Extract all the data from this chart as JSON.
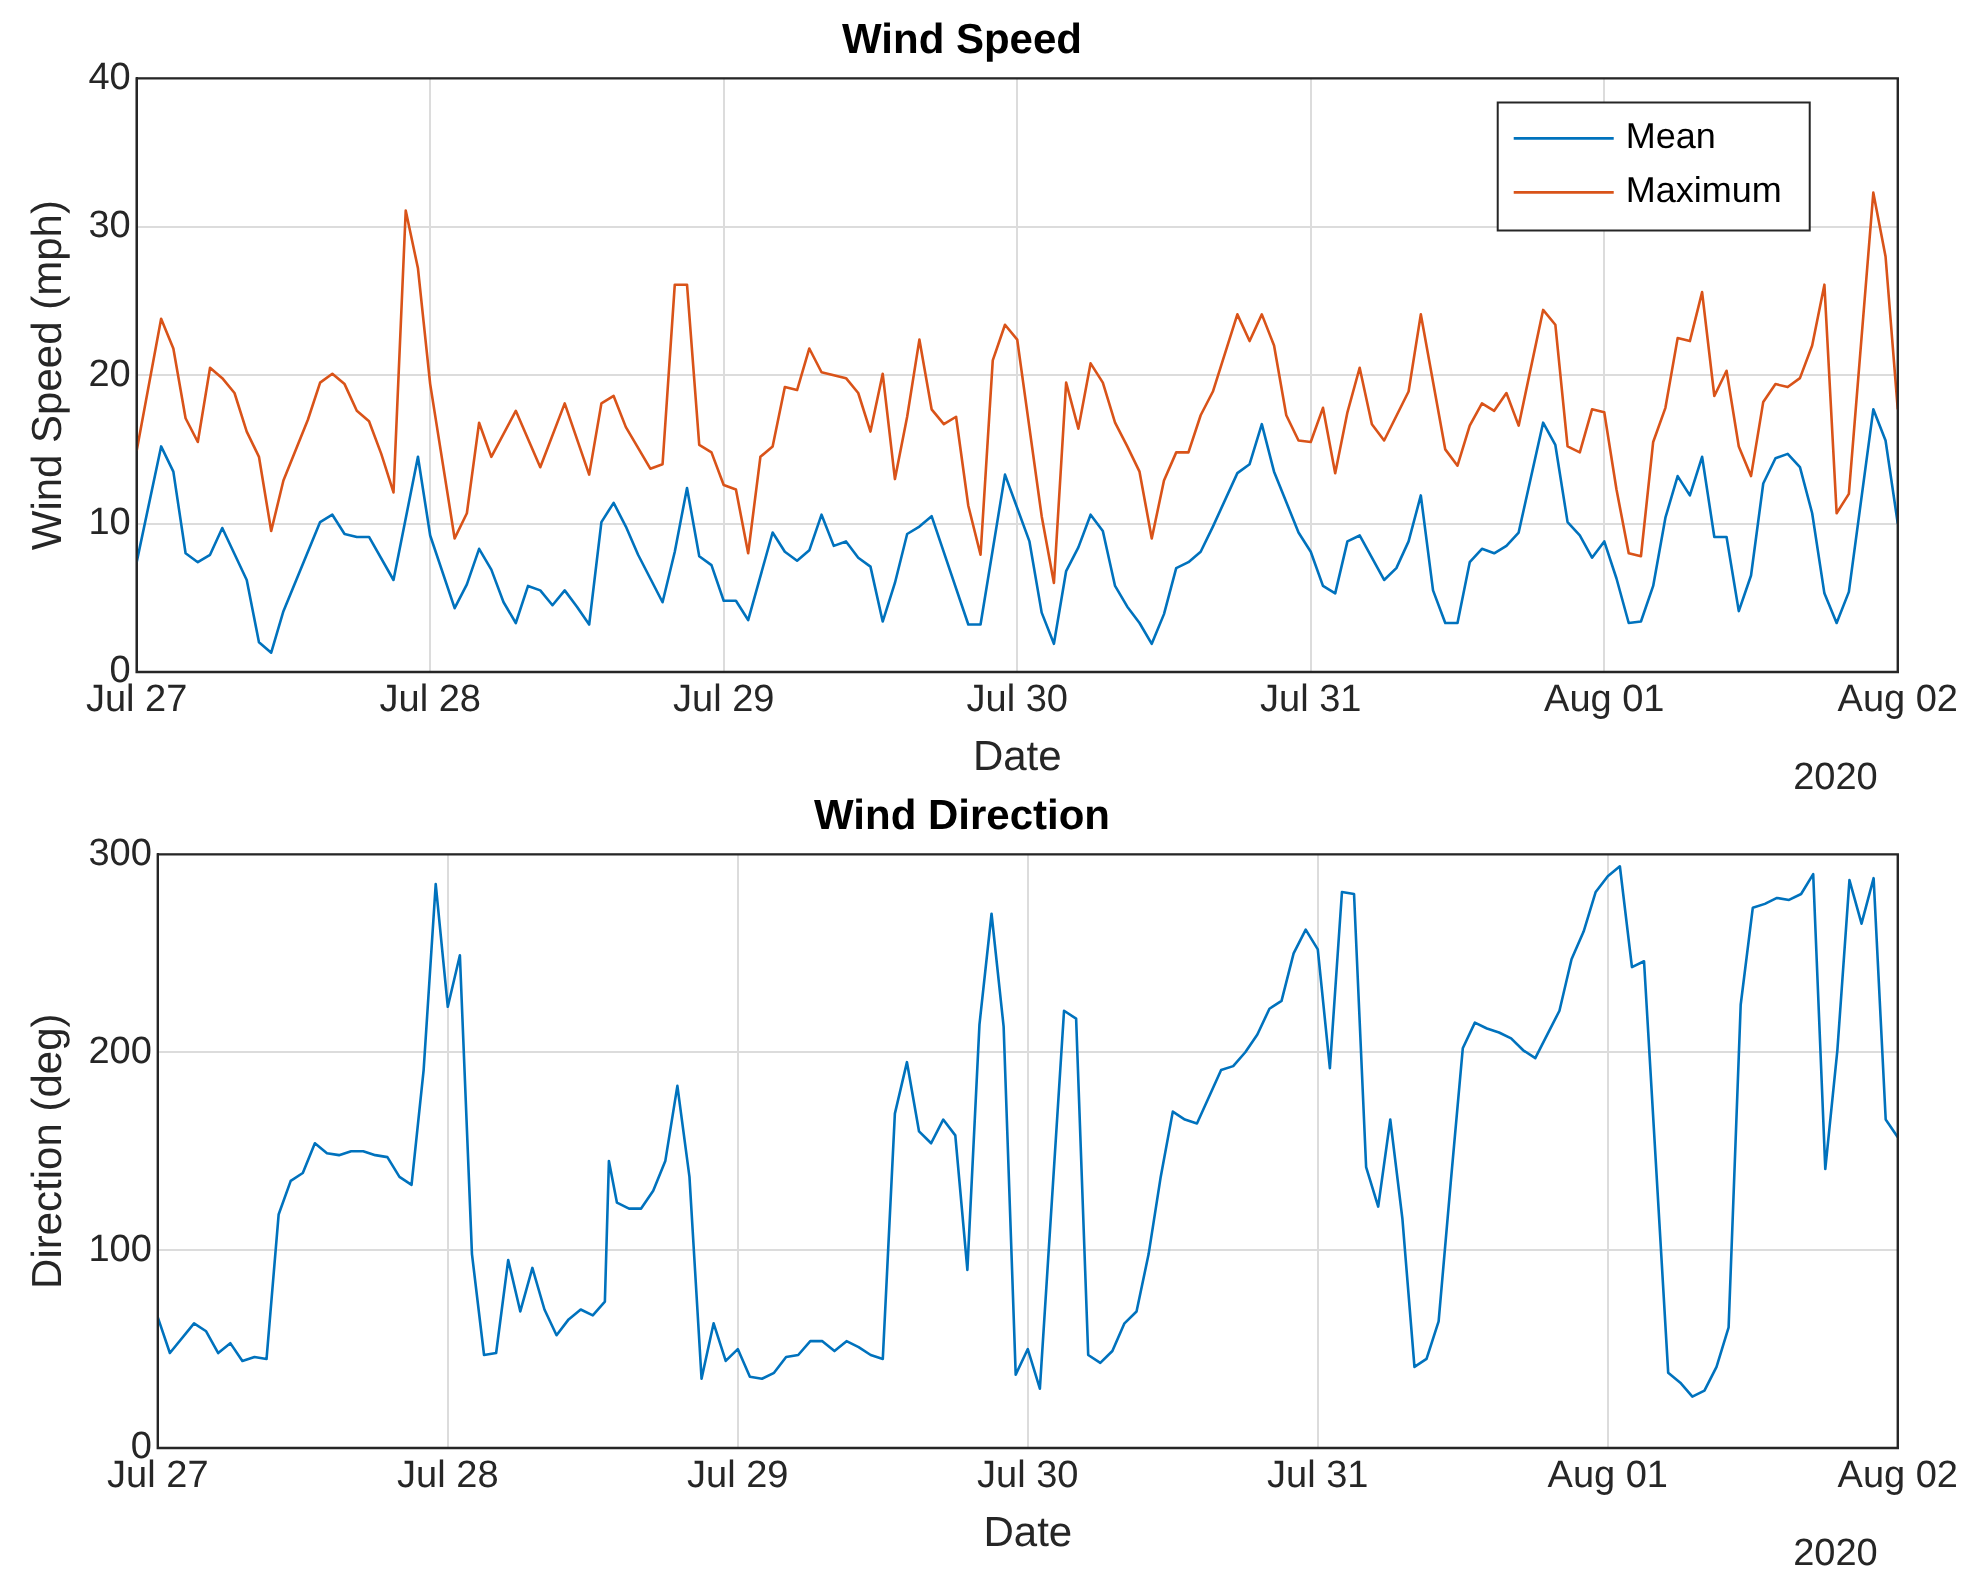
{
  "chart_data": [
    {
      "type": "line",
      "title": "Wind Speed",
      "xlabel": "Date",
      "ylabel": "Wind Speed (mph)",
      "annotations": [
        "2020"
      ],
      "xlim": [
        "2020-07-27",
        "2020-08-02"
      ],
      "xticks": [
        {
          "value": "2020-07-27",
          "label": "Jul 27"
        },
        {
          "value": "2020-07-28",
          "label": "Jul 28"
        },
        {
          "value": "2020-07-29",
          "label": "Jul 29"
        },
        {
          "value": "2020-07-30",
          "label": "Jul 30"
        },
        {
          "value": "2020-07-31",
          "label": "Jul 31"
        },
        {
          "value": "2020-08-01",
          "label": "Aug 01"
        },
        {
          "value": "2020-08-02",
          "label": "Aug 02"
        }
      ],
      "ylim": [
        0,
        40
      ],
      "yticks": [
        0,
        10,
        20,
        30,
        40
      ],
      "grid": true,
      "legend": "top right",
      "series": [
        {
          "name": "Mean",
          "color": "#0072bd",
          "x": [
            "2020-07-27T00:00",
            "2020-07-27T02:00",
            "2020-07-27T03:00",
            "2020-07-27T04:00",
            "2020-07-27T05:00",
            "2020-07-27T06:00",
            "2020-07-27T07:00",
            "2020-07-27T09:00",
            "2020-07-27T10:00",
            "2020-07-27T11:00",
            "2020-07-27T12:00",
            "2020-07-27T15:00",
            "2020-07-27T16:00",
            "2020-07-27T17:00",
            "2020-07-27T18:00",
            "2020-07-27T19:00",
            "2020-07-27T21:00",
            "2020-07-27T23:00",
            "2020-07-28T00:00",
            "2020-07-28T02:00",
            "2020-07-28T03:00",
            "2020-07-28T04:00",
            "2020-07-28T05:00",
            "2020-07-28T06:00",
            "2020-07-28T07:00",
            "2020-07-28T08:00",
            "2020-07-28T09:00",
            "2020-07-28T10:00",
            "2020-07-28T11:00",
            "2020-07-28T12:00",
            "2020-07-28T13:00",
            "2020-07-28T14:00",
            "2020-07-28T15:00",
            "2020-07-28T16:00",
            "2020-07-28T17:00",
            "2020-07-28T18:00",
            "2020-07-28T19:00",
            "2020-07-28T20:00",
            "2020-07-28T21:00",
            "2020-07-28T22:00",
            "2020-07-28T23:00",
            "2020-07-29T00:00",
            "2020-07-29T01:00",
            "2020-07-29T02:00",
            "2020-07-29T04:00",
            "2020-07-29T05:00",
            "2020-07-29T06:00",
            "2020-07-29T07:00",
            "2020-07-29T08:00",
            "2020-07-29T09:00",
            "2020-07-29T10:00",
            "2020-07-29T11:00",
            "2020-07-29T12:00",
            "2020-07-29T13:00",
            "2020-07-29T14:00",
            "2020-07-29T15:00",
            "2020-07-29T16:00",
            "2020-07-29T17:00",
            "2020-07-29T20:00",
            "2020-07-29T21:00",
            "2020-07-29T23:00",
            "2020-07-30T01:00",
            "2020-07-30T02:00",
            "2020-07-30T03:00",
            "2020-07-30T04:00",
            "2020-07-30T05:00",
            "2020-07-30T06:00",
            "2020-07-30T07:00",
            "2020-07-30T08:00",
            "2020-07-30T09:00",
            "2020-07-30T10:00",
            "2020-07-30T11:00",
            "2020-07-30T12:00",
            "2020-07-30T13:00",
            "2020-07-30T14:00",
            "2020-07-30T15:00",
            "2020-07-30T16:00",
            "2020-07-30T18:00",
            "2020-07-30T19:00",
            "2020-07-30T20:00",
            "2020-07-30T21:00",
            "2020-07-30T23:00",
            "2020-07-31T00:00",
            "2020-07-31T01:00",
            "2020-07-31T02:00",
            "2020-07-31T03:00",
            "2020-07-31T04:00",
            "2020-07-31T06:00",
            "2020-07-31T07:00",
            "2020-07-31T08:00",
            "2020-07-31T09:00",
            "2020-07-31T10:00",
            "2020-07-31T11:00",
            "2020-07-31T12:00",
            "2020-07-31T13:00",
            "2020-07-31T14:00",
            "2020-07-31T15:00",
            "2020-07-31T16:00",
            "2020-07-31T17:00",
            "2020-07-31T19:00",
            "2020-07-31T20:00",
            "2020-07-31T21:00",
            "2020-07-31T22:00",
            "2020-07-31T23:00",
            "2020-08-01T00:00",
            "2020-08-01T01:00",
            "2020-08-01T02:00",
            "2020-08-01T03:00",
            "2020-08-01T04:00",
            "2020-08-01T05:00",
            "2020-08-01T06:00",
            "2020-08-01T07:00",
            "2020-08-01T08:00",
            "2020-08-01T09:00",
            "2020-08-01T10:00",
            "2020-08-01T11:00",
            "2020-08-01T12:00",
            "2020-08-01T13:00",
            "2020-08-01T14:00",
            "2020-08-01T15:00",
            "2020-08-01T16:00",
            "2020-08-01T17:00",
            "2020-08-01T18:00",
            "2020-08-01T19:00",
            "2020-08-01T20:00",
            "2020-08-01T22:00",
            "2020-08-01T23:00",
            "2020-08-02T00:00"
          ],
          "values": [
            7.4,
            15.2,
            13.5,
            8.0,
            7.4,
            7.9,
            9.7,
            6.2,
            2.0,
            1.3,
            4.1,
            10.1,
            10.6,
            9.3,
            9.1,
            9.1,
            6.2,
            14.5,
            9.2,
            4.3,
            5.9,
            8.3,
            6.9,
            4.7,
            3.3,
            5.8,
            5.5,
            4.5,
            5.5,
            4.4,
            3.2,
            10.1,
            11.4,
            9.8,
            7.9,
            6.3,
            4.7,
            8.1,
            12.4,
            7.8,
            7.2,
            4.8,
            4.8,
            3.5,
            9.4,
            8.1,
            7.5,
            8.2,
            10.6,
            8.5,
            8.8,
            7.7,
            7.1,
            3.4,
            6.0,
            9.3,
            9.8,
            10.5,
            3.2,
            3.2,
            13.3,
            8.8,
            4.0,
            1.9,
            6.8,
            8.4,
            10.6,
            9.5,
            5.8,
            4.4,
            3.3,
            1.9,
            3.9,
            7.0,
            7.4,
            8.1,
            9.8,
            13.4,
            14.0,
            16.7,
            13.5,
            9.4,
            8.1,
            5.8,
            5.3,
            8.8,
            9.2,
            6.2,
            7.0,
            8.8,
            11.9,
            5.5,
            3.3,
            3.3,
            7.4,
            8.3,
            8.0,
            8.5,
            9.4,
            16.8,
            15.3,
            10.1,
            9.2,
            7.7,
            8.8,
            6.3,
            3.3,
            3.4,
            5.8,
            10.4,
            13.2,
            11.9,
            14.5,
            9.1,
            9.1,
            4.1,
            6.5,
            12.7,
            14.4,
            14.7,
            13.8,
            10.7,
            5.3,
            3.3,
            5.4,
            17.7,
            15.6,
            10.0
          ]
        },
        {
          "name": "Maximum",
          "color": "#d95319",
          "x": [
            "2020-07-27T00:00",
            "2020-07-27T02:00",
            "2020-07-27T03:00",
            "2020-07-27T04:00",
            "2020-07-27T05:00",
            "2020-07-27T06:00",
            "2020-07-27T07:00",
            "2020-07-27T08:00",
            "2020-07-27T09:00",
            "2020-07-27T10:00",
            "2020-07-27T11:00",
            "2020-07-27T12:00",
            "2020-07-27T14:00",
            "2020-07-27T15:00",
            "2020-07-27T16:00",
            "2020-07-27T17:00",
            "2020-07-27T18:00",
            "2020-07-27T19:00",
            "2020-07-27T20:00",
            "2020-07-27T21:00",
            "2020-07-27T22:00",
            "2020-07-27T23:00",
            "2020-07-28T00:00",
            "2020-07-28T02:00",
            "2020-07-28T03:00",
            "2020-07-28T04:00",
            "2020-07-28T05:00",
            "2020-07-28T07:00",
            "2020-07-28T09:00",
            "2020-07-28T11:00",
            "2020-07-28T13:00",
            "2020-07-28T14:00",
            "2020-07-28T15:00",
            "2020-07-28T16:00",
            "2020-07-28T18:00",
            "2020-07-28T19:00",
            "2020-07-28T20:00",
            "2020-07-28T21:00",
            "2020-07-28T22:00",
            "2020-07-28T23:00",
            "2020-07-29T00:00",
            "2020-07-29T01:00",
            "2020-07-29T02:00",
            "2020-07-29T03:00",
            "2020-07-29T04:00",
            "2020-07-29T05:00",
            "2020-07-29T06:00",
            "2020-07-29T07:00",
            "2020-07-29T08:00",
            "2020-07-29T09:00",
            "2020-07-29T10:00",
            "2020-07-29T11:00",
            "2020-07-29T12:00",
            "2020-07-29T13:00",
            "2020-07-29T14:00",
            "2020-07-29T15:00",
            "2020-07-29T16:00",
            "2020-07-29T17:00",
            "2020-07-29T18:00",
            "2020-07-29T19:00",
            "2020-07-29T20:00",
            "2020-07-29T21:00",
            "2020-07-29T22:00",
            "2020-07-29T23:00",
            "2020-07-30T00:00",
            "2020-07-30T02:00",
            "2020-07-30T03:00",
            "2020-07-30T04:00",
            "2020-07-30T05:00",
            "2020-07-30T06:00",
            "2020-07-30T07:00",
            "2020-07-30T08:00",
            "2020-07-30T09:00",
            "2020-07-30T10:00",
            "2020-07-30T11:00",
            "2020-07-30T12:00",
            "2020-07-30T13:00",
            "2020-07-30T14:00",
            "2020-07-30T15:00",
            "2020-07-30T16:00",
            "2020-07-30T18:00",
            "2020-07-30T19:00",
            "2020-07-30T20:00",
            "2020-07-30T21:00",
            "2020-07-30T22:00",
            "2020-07-30T23:00",
            "2020-07-31T00:00",
            "2020-07-31T01:00",
            "2020-07-31T02:00",
            "2020-07-31T03:00",
            "2020-07-31T04:00",
            "2020-07-31T05:00",
            "2020-07-31T06:00",
            "2020-07-31T08:00",
            "2020-07-31T09:00",
            "2020-07-31T11:00",
            "2020-07-31T12:00",
            "2020-07-31T13:00",
            "2020-07-31T14:00",
            "2020-07-31T15:00",
            "2020-07-31T16:00",
            "2020-07-31T17:00",
            "2020-07-31T19:00",
            "2020-07-31T20:00",
            "2020-07-31T21:00",
            "2020-07-31T22:00",
            "2020-07-31T23:00",
            "2020-08-01T00:00",
            "2020-08-01T01:00",
            "2020-08-01T02:00",
            "2020-08-01T03:00",
            "2020-08-01T04:00",
            "2020-08-01T05:00",
            "2020-08-01T06:00",
            "2020-08-01T07:00",
            "2020-08-01T08:00",
            "2020-08-01T09:00",
            "2020-08-01T10:00",
            "2020-08-01T11:00",
            "2020-08-01T12:00",
            "2020-08-01T13:00",
            "2020-08-01T14:00",
            "2020-08-01T15:00",
            "2020-08-01T16:00",
            "2020-08-01T17:00",
            "2020-08-01T18:00",
            "2020-08-01T19:00",
            "2020-08-01T20:00",
            "2020-08-01T22:00",
            "2020-08-01T23:00",
            "2020-08-02T00:00"
          ],
          "values": [
            14.9,
            23.8,
            21.8,
            17.1,
            15.5,
            20.5,
            19.8,
            18.8,
            16.2,
            14.5,
            9.5,
            12.9,
            17.0,
            19.5,
            20.1,
            19.4,
            17.6,
            16.9,
            14.7,
            12.1,
            31.1,
            27.2,
            19.4,
            9.0,
            10.7,
            16.8,
            14.5,
            17.6,
            13.8,
            18.1,
            13.3,
            18.1,
            18.6,
            16.5,
            13.7,
            14.0,
            26.1,
            26.1,
            15.3,
            14.8,
            12.6,
            12.3,
            8.0,
            14.5,
            15.2,
            19.2,
            19.0,
            21.8,
            20.2,
            20.0,
            19.8,
            18.8,
            16.2,
            20.1,
            13.0,
            17.2,
            22.4,
            17.7,
            16.7,
            17.2,
            11.2,
            7.9,
            21.0,
            23.4,
            22.4,
            10.5,
            6.0,
            19.5,
            16.4,
            20.8,
            19.5,
            16.8,
            15.2,
            13.5,
            9.0,
            12.9,
            14.8,
            14.8,
            17.3,
            18.9,
            24.1,
            22.3,
            24.1,
            22.0,
            17.3,
            15.6,
            15.5,
            17.8,
            13.4,
            17.5,
            20.5,
            16.7,
            15.6,
            18.9,
            24.1,
            15.0,
            13.9,
            16.6,
            18.1,
            17.6,
            18.8,
            16.6,
            24.4,
            23.4,
            15.2,
            14.8,
            17.7,
            17.5,
            12.3,
            8.0,
            7.8,
            15.5,
            17.8,
            22.5,
            22.3,
            25.6,
            18.6,
            20.3,
            15.2,
            13.2,
            18.2,
            19.4,
            19.2,
            19.8,
            22.0,
            26.1,
            10.7,
            12.0,
            32.3,
            28.0,
            17.7
          ]
        }
      ]
    },
    {
      "type": "line",
      "title": "Wind Direction",
      "xlabel": "Date",
      "ylabel": "Direction (deg)",
      "annotations": [
        "2020"
      ],
      "xlim": [
        "2020-07-27",
        "2020-08-02"
      ],
      "xticks": [
        {
          "value": "2020-07-27",
          "label": "Jul 27"
        },
        {
          "value": "2020-07-28",
          "label": "Jul 28"
        },
        {
          "value": "2020-07-29",
          "label": "Jul 29"
        },
        {
          "value": "2020-07-30",
          "label": "Jul 30"
        },
        {
          "value": "2020-07-31",
          "label": "Jul 31"
        },
        {
          "value": "2020-08-01",
          "label": "Aug 01"
        },
        {
          "value": "2020-08-02",
          "label": "Aug 02"
        }
      ],
      "ylim": [
        0,
        300
      ],
      "yticks": [
        0,
        100,
        200,
        300
      ],
      "grid": true,
      "color": "#0072bd",
      "x": [
        "2020-07-27T00:00",
        "2020-07-27T01:00",
        "2020-07-27T03:00",
        "2020-07-27T04:00",
        "2020-07-27T05:00",
        "2020-07-27T06:00",
        "2020-07-27T07:00",
        "2020-07-27T08:00",
        "2020-07-27T09:00",
        "2020-07-27T10:00",
        "2020-07-27T11:00",
        "2020-07-27T12:00",
        "2020-07-27T13:00",
        "2020-07-27T14:00",
        "2020-07-27T15:00",
        "2020-07-27T16:00",
        "2020-07-27T17:00",
        "2020-07-27T18:00",
        "2020-07-27T19:00",
        "2020-07-27T20:00",
        "2020-07-27T21:00",
        "2020-07-27T22:00",
        "2020-07-27T23:00",
        "2020-07-28T00:00",
        "2020-07-28T01:00",
        "2020-07-28T02:00",
        "2020-07-28T03:00",
        "2020-07-28T04:00",
        "2020-07-28T05:00",
        "2020-07-28T06:00",
        "2020-07-28T07:00",
        "2020-07-28T08:00",
        "2020-07-28T09:00",
        "2020-07-28T10:00",
        "2020-07-28T11:00",
        "2020-07-28T12:00",
        "2020-07-28T13:00",
        "2020-07-28T13:20",
        "2020-07-28T14:00",
        "2020-07-28T15:00",
        "2020-07-28T16:00",
        "2020-07-28T17:00",
        "2020-07-28T18:00",
        "2020-07-28T19:00",
        "2020-07-28T20:00",
        "2020-07-28T21:00",
        "2020-07-28T22:00",
        "2020-07-28T23:00",
        "2020-07-29T00:00",
        "2020-07-29T01:00",
        "2020-07-29T02:00",
        "2020-07-29T03:00",
        "2020-07-29T04:00",
        "2020-07-29T05:00",
        "2020-07-29T06:00",
        "2020-07-29T07:00",
        "2020-07-29T08:00",
        "2020-07-29T09:00",
        "2020-07-29T10:00",
        "2020-07-29T11:00",
        "2020-07-29T12:00",
        "2020-07-29T13:00",
        "2020-07-29T14:00",
        "2020-07-29T15:00",
        "2020-07-29T16:00",
        "2020-07-29T17:00",
        "2020-07-29T18:00",
        "2020-07-29T19:00",
        "2020-07-29T20:00",
        "2020-07-29T21:00",
        "2020-07-29T22:00",
        "2020-07-29T23:00",
        "2020-07-30T00:00",
        "2020-07-30T01:00",
        "2020-07-30T03:00",
        "2020-07-30T04:00",
        "2020-07-30T05:00",
        "2020-07-30T06:00",
        "2020-07-30T07:00",
        "2020-07-30T08:00",
        "2020-07-30T09:00",
        "2020-07-30T10:00",
        "2020-07-30T11:00",
        "2020-07-30T12:00",
        "2020-07-30T13:00",
        "2020-07-30T14:00",
        "2020-07-30T16:00",
        "2020-07-30T17:00",
        "2020-07-30T18:00",
        "2020-07-30T19:00",
        "2020-07-30T20:00",
        "2020-07-30T21:00",
        "2020-07-30T22:00",
        "2020-07-30T23:00",
        "2020-07-31T00:00",
        "2020-07-31T01:00",
        "2020-07-31T02:00",
        "2020-07-31T03:00",
        "2020-07-31T04:00",
        "2020-07-31T05:00",
        "2020-07-31T06:00",
        "2020-07-31T07:00",
        "2020-07-31T08:00",
        "2020-07-31T09:00",
        "2020-07-31T10:00",
        "2020-07-31T11:00",
        "2020-07-31T12:00",
        "2020-07-31T13:00",
        "2020-07-31T14:00",
        "2020-07-31T15:00",
        "2020-07-31T16:00",
        "2020-07-31T17:00",
        "2020-07-31T18:00",
        "2020-07-31T19:00",
        "2020-07-31T20:00",
        "2020-07-31T21:00",
        "2020-07-31T22:00",
        "2020-07-31T23:00",
        "2020-08-01T00:00",
        "2020-08-01T01:00",
        "2020-08-01T02:00",
        "2020-08-01T03:00",
        "2020-08-01T05:00",
        "2020-08-01T06:00",
        "2020-08-01T07:00",
        "2020-08-01T08:00",
        "2020-08-01T09:00",
        "2020-08-01T10:00",
        "2020-08-01T11:00",
        "2020-08-01T12:00",
        "2020-08-01T13:00",
        "2020-08-01T14:00",
        "2020-08-01T15:00",
        "2020-08-01T16:00",
        "2020-08-01T17:00",
        "2020-08-01T18:00",
        "2020-08-01T19:00",
        "2020-08-01T20:00",
        "2020-08-01T21:00",
        "2020-08-01T22:00",
        "2020-08-01T23:00",
        "2020-08-02T00:00"
      ],
      "values": [
        66,
        48,
        63,
        59,
        48,
        53,
        44,
        46,
        45,
        118,
        135,
        139,
        154,
        149,
        148,
        150,
        150,
        148,
        147,
        137,
        133,
        191,
        285,
        223,
        249,
        98,
        47,
        48,
        95,
        69,
        91,
        70,
        57,
        65,
        70,
        67,
        74,
        145,
        124,
        121,
        121,
        130,
        145,
        183,
        137,
        35,
        63,
        44,
        50,
        36,
        35,
        38,
        46,
        47,
        54,
        54,
        49,
        54,
        51,
        47,
        45,
        169,
        195,
        160,
        154,
        166,
        158,
        90,
        214,
        270,
        213,
        37,
        50,
        30,
        221,
        217,
        47,
        43,
        49,
        63,
        69,
        98,
        137,
        170,
        166,
        164,
        191,
        193,
        200,
        209,
        222,
        226,
        250,
        262,
        252,
        192,
        281,
        280,
        142,
        122,
        166,
        116,
        41,
        45,
        64,
        134,
        202,
        215,
        212,
        210,
        207,
        201,
        197,
        209,
        221,
        247,
        261,
        281,
        289,
        294,
        243,
        246,
        38,
        33,
        26,
        29,
        41,
        61,
        224,
        273,
        275,
        278,
        277,
        280,
        290,
        141,
        201,
        287,
        265,
        288,
        166,
        157
      ]
    }
  ]
}
